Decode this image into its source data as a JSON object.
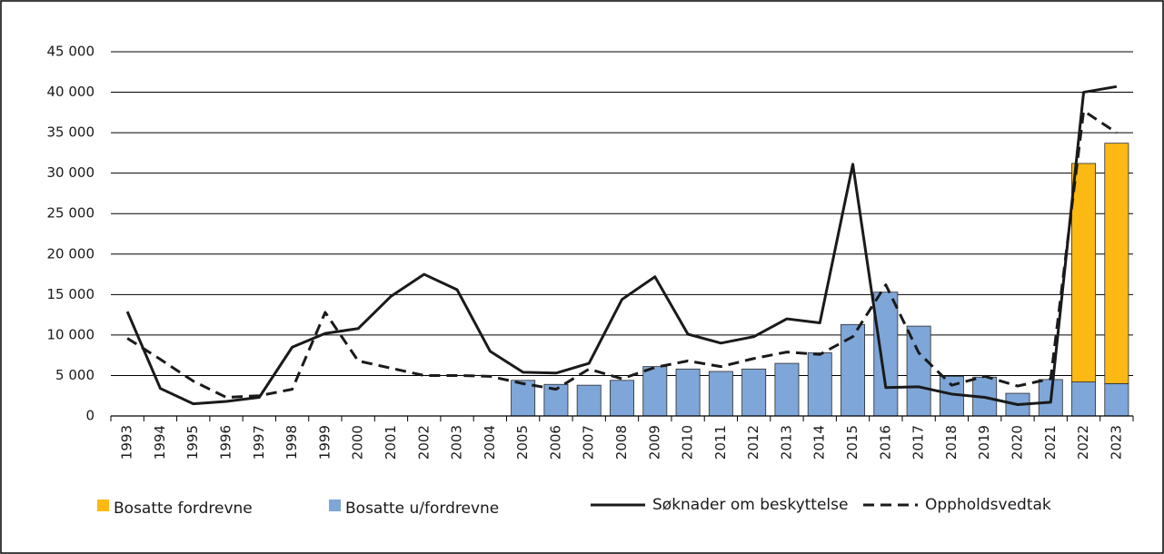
{
  "chart_data": {
    "type": "bar",
    "categories": [
      "1993",
      "1994",
      "1995",
      "1996",
      "1997",
      "1998",
      "1999",
      "2000",
      "2001",
      "2002",
      "2003",
      "2004",
      "2005",
      "2006",
      "2007",
      "2008",
      "2009",
      "2010",
      "2011",
      "2012",
      "2013",
      "2014",
      "2015",
      "2016",
      "2017",
      "2018",
      "2019",
      "2020",
      "2021",
      "2022",
      "2023"
    ],
    "series": [
      {
        "name": "Bosatte fordrevne",
        "type": "bar",
        "color": "#fdb913",
        "values": [
          null,
          null,
          null,
          null,
          null,
          null,
          null,
          null,
          null,
          null,
          null,
          null,
          null,
          null,
          null,
          null,
          null,
          null,
          null,
          null,
          null,
          null,
          null,
          null,
          null,
          null,
          null,
          null,
          null,
          27000,
          29700
        ]
      },
      {
        "name": "Bosatte u/fordrevne",
        "type": "bar",
        "color": "#7ea6d8",
        "values": [
          null,
          null,
          null,
          null,
          null,
          null,
          null,
          null,
          null,
          null,
          null,
          null,
          4400,
          3900,
          3800,
          4400,
          6100,
          5800,
          5500,
          5800,
          6500,
          7800,
          11300,
          15300,
          11100,
          4900,
          4800,
          2800,
          4500,
          4200,
          4000
        ]
      },
      {
        "name": "Søknader om beskyttelse",
        "type": "line",
        "color": "#1a1a1a",
        "dashed": false,
        "values": [
          12900,
          3400,
          1500,
          1800,
          2300,
          8500,
          10200,
          10800,
          14800,
          17500,
          15600,
          8000,
          5400,
          5300,
          6500,
          14400,
          17200,
          10100,
          9000,
          9800,
          12000,
          11500,
          31100,
          3500,
          3600,
          2700,
          2300,
          1400,
          1700,
          40000,
          40700
        ]
      },
      {
        "name": "Oppholdsvedtak",
        "type": "line",
        "color": "#1a1a1a",
        "dashed": true,
        "values": [
          9600,
          7000,
          4300,
          2300,
          2500,
          3300,
          12800,
          6800,
          5900,
          5000,
          5000,
          4900,
          4000,
          3300,
          5800,
          4600,
          6000,
          6800,
          6100,
          7100,
          7900,
          7600,
          9800,
          16200,
          7800,
          3800,
          4900,
          3700,
          4600,
          37700,
          35000
        ]
      }
    ],
    "ylim": [
      0,
      45000
    ],
    "yticks": [
      0,
      {
        "value": 5000,
        "label": "5 000"
      },
      {
        "value": 10000,
        "label": "10 000"
      },
      {
        "value": 15000,
        "label": "15 000"
      },
      {
        "value": 20000,
        "label": "20 000"
      },
      {
        "value": 25000,
        "label": "25 000"
      },
      {
        "value": 30000,
        "label": "30 000"
      },
      {
        "value": 35000,
        "label": "35 000"
      },
      {
        "value": 40000,
        "label": "40 000"
      },
      {
        "value": 45000,
        "label": "45 000"
      }
    ],
    "grid": true,
    "legend": "bottom"
  }
}
